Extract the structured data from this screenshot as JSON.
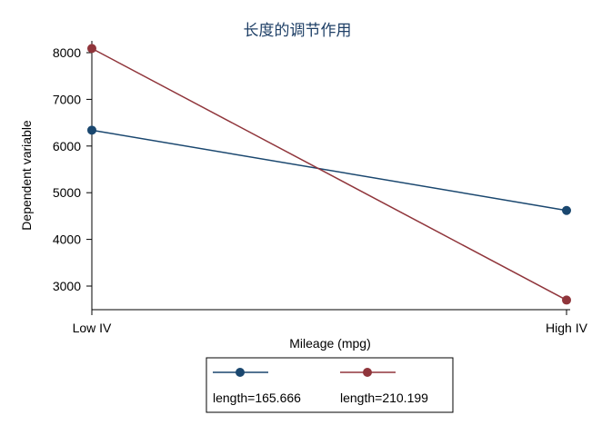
{
  "chart_data": {
    "type": "line",
    "title": "长度的调节作用",
    "xlabel": "Mileage (mpg)",
    "ylabel": "Dependent variable",
    "categories": [
      "Low IV",
      "High IV"
    ],
    "ylim": [
      2700,
      8100
    ],
    "yticks": [
      3000,
      4000,
      5000,
      6000,
      7000,
      8000
    ],
    "grid": false,
    "legend_position": "bottom",
    "series": [
      {
        "name": "length=165.666",
        "values": [
          6340,
          4620
        ],
        "color": "#1a476f"
      },
      {
        "name": "length=210.199",
        "values": [
          8090,
          2700
        ],
        "color": "#90353b"
      }
    ]
  }
}
